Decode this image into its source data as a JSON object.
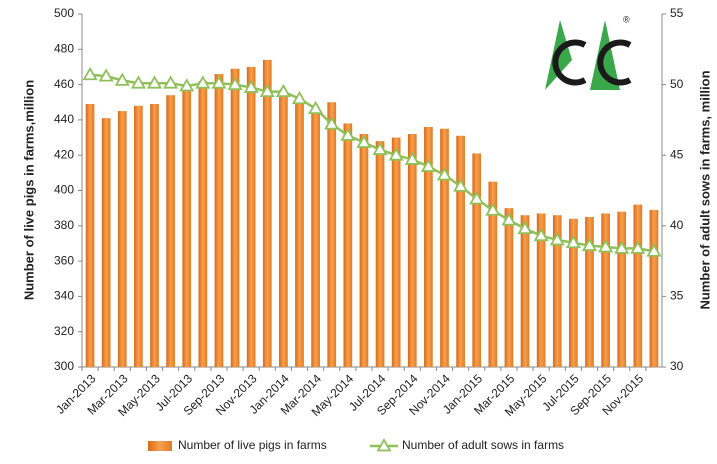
{
  "chart_data": {
    "type": "bar_line",
    "logo_mark": "®",
    "y_label": "Number of live pigs in farms,million",
    "y2_label": "Number of adult sows in farms, million",
    "categories": [
      "Jan-2013",
      null,
      "Mar-2013",
      null,
      "May-2013",
      null,
      "Jul-2013",
      null,
      "Sep-2013",
      null,
      "Nov-2013",
      null,
      "Jan-2014",
      null,
      "Mar-2014",
      null,
      "May-2014",
      null,
      "Jul-2014",
      null,
      "Sep-2014",
      null,
      "Nov-2014",
      null,
      "Jan-2015",
      null,
      "Mar-2015",
      null,
      "May-2015",
      null,
      "Jul-2015",
      null,
      "Sep-2015",
      null,
      "Nov-2015",
      null
    ],
    "series": [
      {
        "name": "Number of live pigs in farms",
        "color": "#f08a2e",
        "type": "bar",
        "values": [
          449,
          441,
          445,
          448,
          449,
          454,
          458,
          462,
          466,
          469,
          470,
          474,
          455,
          452,
          446,
          450,
          438,
          432,
          428,
          430,
          432,
          436,
          435,
          431,
          421,
          405,
          390,
          386,
          387,
          386,
          384,
          385,
          387,
          388,
          392,
          389
        ]
      },
      {
        "name": "Number of adult sows in farms",
        "color": "#8fc05a",
        "type": "line",
        "axis": "y2",
        "values": [
          50.7,
          50.6,
          50.3,
          50.1,
          50.1,
          50.1,
          49.9,
          50.1,
          50.1,
          50.0,
          49.8,
          49.5,
          49.5,
          49.0,
          48.3,
          47.2,
          46.4,
          45.9,
          45.4,
          45.0,
          44.7,
          44.2,
          43.6,
          42.8,
          41.9,
          41.1,
          40.4,
          39.8,
          39.3,
          39.0,
          38.8,
          38.6,
          38.5,
          38.4,
          38.4,
          38.2
        ]
      }
    ],
    "ylim": [
      300,
      500
    ],
    "yticks": [
      300,
      320,
      340,
      360,
      380,
      400,
      420,
      440,
      460,
      480,
      500
    ],
    "y2lim": [
      30,
      55
    ],
    "y2ticks": [
      30,
      35,
      40,
      45,
      50,
      55
    ],
    "grid": false,
    "legend": "bottom"
  }
}
